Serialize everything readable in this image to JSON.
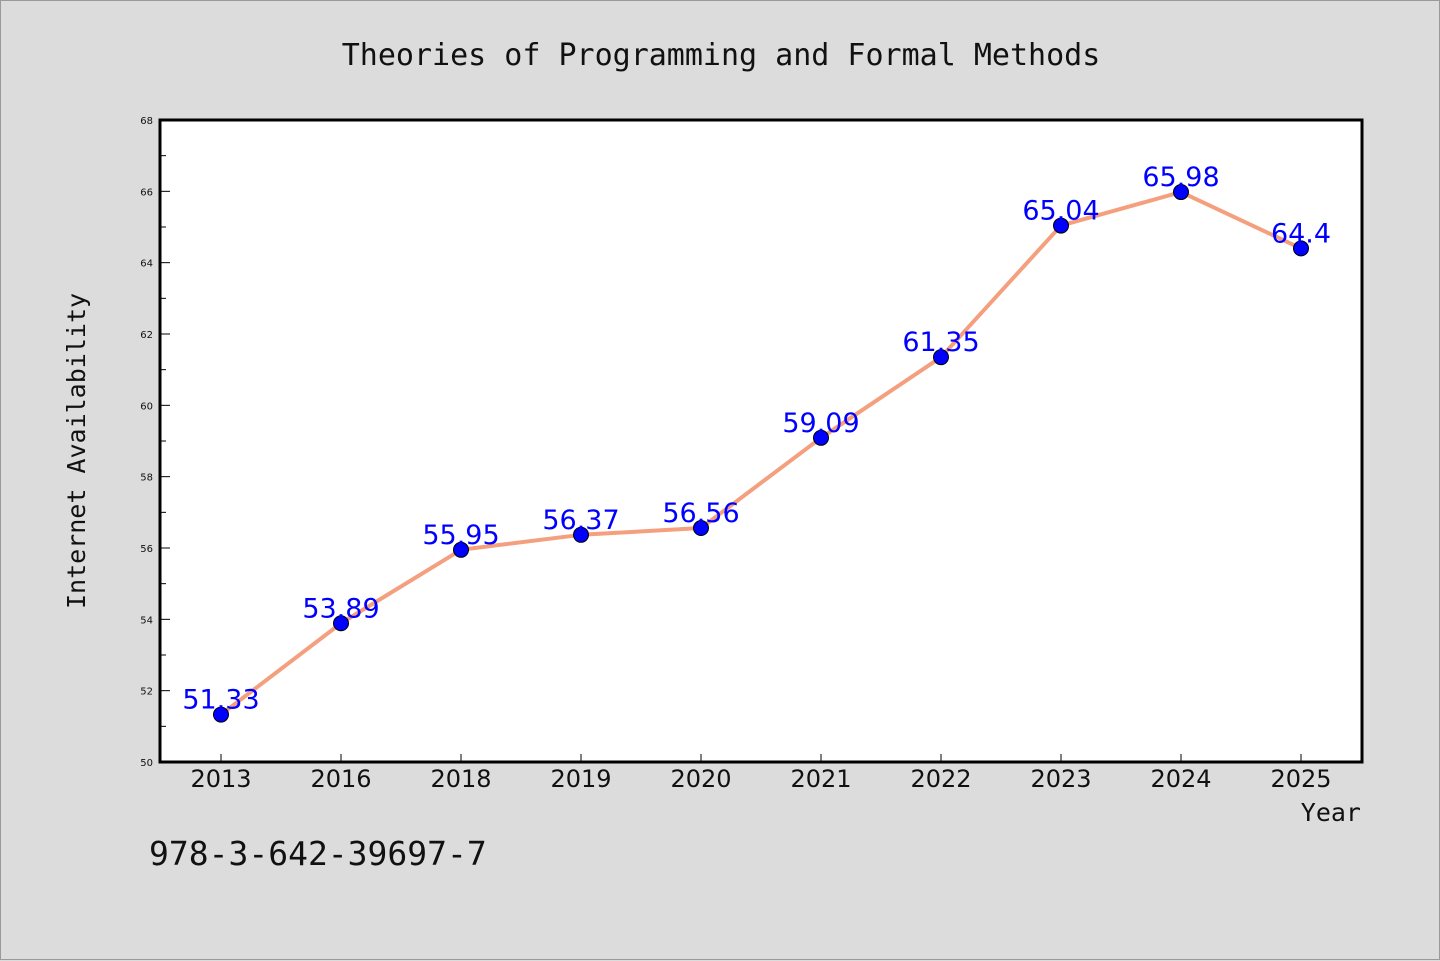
{
  "chart_data": {
    "type": "line",
    "title": "Theories of Programming and Formal Methods",
    "xlabel": "Year",
    "ylabel": "Internet Availability",
    "categories": [
      "2013",
      "2016",
      "2018",
      "2019",
      "2020",
      "2021",
      "2022",
      "2023",
      "2024",
      "2025"
    ],
    "series": [
      {
        "values": [
          51.33,
          53.89,
          55.95,
          56.37,
          56.56,
          59.09,
          61.35,
          65.04,
          65.98,
          64.4
        ],
        "data_labels": [
          "51.33",
          "53.89",
          "55.95",
          "56.37",
          "56.56",
          "59.09",
          "61.35",
          "65.04",
          "65.98",
          "64.4"
        ],
        "line_color": "#f4a07f",
        "marker_color": "#0000ff"
      }
    ],
    "ylim": [
      50,
      68
    ],
    "yticks": [
      "50",
      "52",
      "54",
      "56",
      "58",
      "60",
      "62",
      "64",
      "66",
      "68"
    ],
    "grid": false,
    "legend": "none"
  },
  "annotation": {
    "isbn": "978-3-642-39697-7"
  },
  "colors": {
    "background": "#dcdcdc",
    "plot_background": "#ffffff",
    "line": "#f4a07f",
    "marker": "#0000ff",
    "data_label": "#0000ff"
  }
}
